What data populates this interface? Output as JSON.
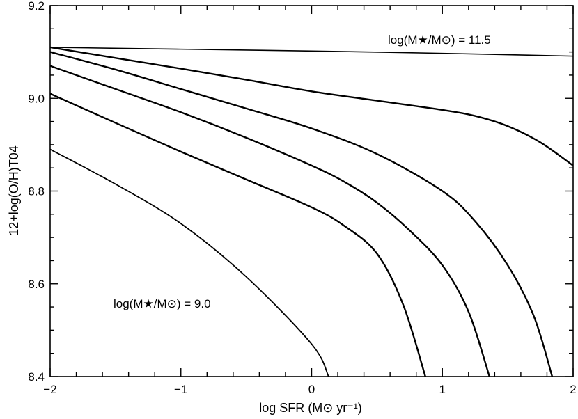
{
  "chart_data": {
    "type": "line",
    "title": "",
    "xlabel": "log SFR (M⊙ yr⁻¹)",
    "ylabel": "12+log(O/H)T04",
    "xlim": [
      -2,
      2
    ],
    "ylim": [
      8.4,
      9.2
    ],
    "xticks": [
      -2,
      -1,
      0,
      1,
      2
    ],
    "xtick_labels": [
      "−2",
      "−1",
      "0",
      "1",
      "2"
    ],
    "yticks": [
      8.4,
      8.6,
      8.8,
      9.0,
      9.2
    ],
    "ytick_labels": [
      "8.4",
      "8.6",
      "8.8",
      "9.0",
      "9.2"
    ],
    "grid": false,
    "legend": "none",
    "line_color": "#000000",
    "annotations": [
      {
        "text": "log(M★/M⊙) = 11.5",
        "near_series": 0
      },
      {
        "text": "log(M★/M⊙) = 9.0",
        "near_series": 5
      }
    ],
    "series": [
      {
        "x": [
          -2,
          -1,
          0,
          1,
          2
        ],
        "y": [
          9.11,
          9.106,
          9.102,
          9.097,
          9.091
        ]
      },
      {
        "x": [
          -2,
          -1.5,
          -1,
          -0.5,
          0,
          0.5,
          1,
          1.25,
          1.5,
          1.75,
          2
        ],
        "y": [
          9.11,
          9.087,
          9.064,
          9.04,
          9.015,
          8.995,
          8.975,
          8.962,
          8.94,
          8.905,
          8.855
        ]
      },
      {
        "x": [
          -2,
          -1.5,
          -1,
          -0.5,
          0,
          0.5,
          1,
          1.25,
          1.5,
          1.7,
          1.84
        ],
        "y": [
          9.1,
          9.062,
          9.02,
          8.978,
          8.935,
          8.88,
          8.8,
          8.735,
          8.64,
          8.53,
          8.4
        ]
      },
      {
        "x": [
          -2,
          -1.5,
          -1,
          -0.5,
          0,
          0.25,
          0.5,
          0.75,
          1,
          1.2,
          1.36
        ],
        "y": [
          9.07,
          9.02,
          8.97,
          8.915,
          8.855,
          8.82,
          8.775,
          8.715,
          8.64,
          8.54,
          8.4
        ]
      },
      {
        "x": [
          -2,
          -1.5,
          -1,
          -0.5,
          0,
          0.25,
          0.5,
          0.7,
          0.87
        ],
        "y": [
          9.01,
          8.947,
          8.885,
          8.825,
          8.765,
          8.725,
          8.665,
          8.555,
          8.4
        ]
      },
      {
        "x": [
          -2,
          -1.5,
          -1,
          -0.5,
          0,
          0.13
        ],
        "y": [
          8.89,
          8.815,
          8.73,
          8.615,
          8.47,
          8.4
        ]
      }
    ]
  }
}
